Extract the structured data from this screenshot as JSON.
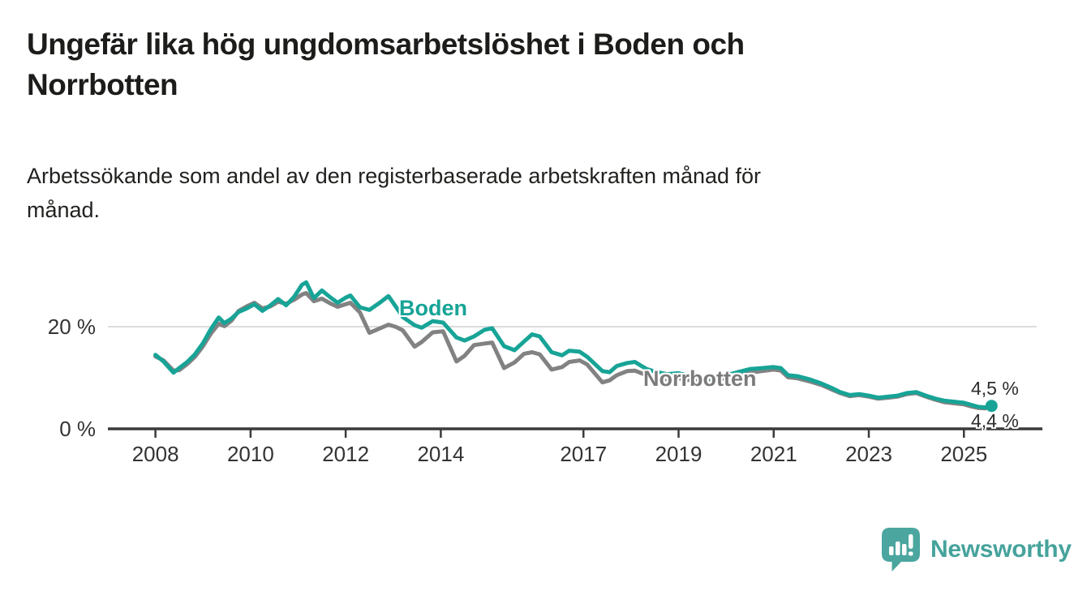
{
  "header": {
    "title_lines": [
      "Ungefär lika hög ungdomsarbetslöshet i Boden och",
      "Norrbotten"
    ],
    "subtitle_lines": [
      "Arbetssökande som andel av den registerbaserade arbetskraften månad för",
      "månad."
    ]
  },
  "chart_data": {
    "type": "line",
    "unit": "%",
    "grid": "horizontal-only",
    "legend_position": "inline-labels",
    "x": [
      2008.0,
      2008.17,
      2008.38,
      2008.5,
      2008.67,
      2008.83,
      2009.0,
      2009.17,
      2009.33,
      2009.45,
      2009.6,
      2009.75,
      2009.92,
      2010.08,
      2010.25,
      2010.42,
      2010.58,
      2010.75,
      2010.92,
      2011.08,
      2011.17,
      2011.33,
      2011.5,
      2011.67,
      2011.83,
      2012.0,
      2012.1,
      2012.3,
      2012.5,
      2012.7,
      2012.9,
      2013.05,
      2013.2,
      2013.45,
      2013.6,
      2013.83,
      2014.05,
      2014.33,
      2014.5,
      2014.7,
      2014.92,
      2015.08,
      2015.33,
      2015.55,
      2015.75,
      2015.92,
      2016.08,
      2016.33,
      2016.55,
      2016.7,
      2016.92,
      2017.08,
      2017.4,
      2017.55,
      2017.7,
      2017.92,
      2018.08,
      2018.33,
      2018.55,
      2018.75,
      2019.0,
      2019.25,
      2019.5,
      2019.75,
      2020.0,
      2020.25,
      2020.5,
      2020.75,
      2021.0,
      2021.15,
      2021.3,
      2021.5,
      2021.75,
      2022.0,
      2022.2,
      2022.4,
      2022.6,
      2022.8,
      2023.0,
      2023.2,
      2023.4,
      2023.6,
      2023.8,
      2024.0,
      2024.2,
      2024.4,
      2024.6,
      2024.8,
      2025.0,
      2025.15,
      2025.3,
      2025.45,
      2025.58
    ],
    "series": [
      {
        "name": "Boden",
        "color": "#17a497",
        "end_label": "4,5 %",
        "end_value": 4.5,
        "values": [
          14.5,
          13.2,
          11.0,
          11.9,
          13.1,
          14.6,
          16.8,
          19.6,
          21.8,
          20.7,
          21.6,
          22.9,
          23.6,
          24.4,
          23.1,
          24.2,
          25.4,
          24.2,
          25.9,
          28.2,
          28.7,
          25.6,
          27.1,
          25.8,
          24.7,
          25.7,
          26.1,
          23.8,
          23.3,
          24.6,
          26.0,
          24.0,
          21.9,
          20.3,
          19.8,
          21.1,
          20.8,
          17.9,
          17.3,
          18.1,
          19.4,
          19.7,
          16.2,
          15.4,
          17.1,
          18.5,
          18.1,
          15.0,
          14.4,
          15.3,
          15.1,
          14.1,
          11.3,
          11.1,
          12.3,
          12.9,
          13.1,
          11.7,
          11.1,
          10.7,
          10.9,
          10.3,
          9.9,
          10.1,
          10.5,
          11.1,
          11.7,
          11.9,
          12.1,
          11.9,
          10.5,
          10.3,
          9.7,
          8.9,
          8.1,
          7.2,
          6.6,
          6.8,
          6.5,
          6.1,
          6.3,
          6.5,
          7.0,
          7.2,
          6.5,
          5.9,
          5.5,
          5.3,
          5.1,
          4.7,
          4.3,
          4.2,
          4.5
        ]
      },
      {
        "name": "Norrbotten",
        "color": "#828282",
        "end_label": "4,4 %",
        "end_value": 4.4,
        "values": [
          14.2,
          13.4,
          11.4,
          11.5,
          12.7,
          14.1,
          16.2,
          18.7,
          20.6,
          20.1,
          21.2,
          23.1,
          24.0,
          24.7,
          23.6,
          24.0,
          24.9,
          24.5,
          25.3,
          26.3,
          26.6,
          25.0,
          25.5,
          24.6,
          23.9,
          24.4,
          24.7,
          22.8,
          18.8,
          19.6,
          20.4,
          20.0,
          19.3,
          16.1,
          17.0,
          18.9,
          19.1,
          13.2,
          14.3,
          16.4,
          16.7,
          16.9,
          11.9,
          13.0,
          14.7,
          15.0,
          14.6,
          11.6,
          12.1,
          13.1,
          13.4,
          12.6,
          9.1,
          9.5,
          10.5,
          11.3,
          11.4,
          10.5,
          10.0,
          9.7,
          9.9,
          9.5,
          9.2,
          9.5,
          9.9,
          10.4,
          11.0,
          11.3,
          11.6,
          11.4,
          10.1,
          9.9,
          9.3,
          8.6,
          7.8,
          7.0,
          6.4,
          6.6,
          6.3,
          5.9,
          6.1,
          6.3,
          6.8,
          7.0,
          6.3,
          5.7,
          5.2,
          5.0,
          4.8,
          4.4,
          4.1,
          4.0,
          4.4
        ]
      }
    ],
    "xticks": [
      2008,
      2010,
      2012,
      2014,
      2017,
      2019,
      2021,
      2023,
      2025
    ],
    "xtick_labels": [
      "2008",
      "2010",
      "2012",
      "2014",
      "2017",
      "2019",
      "2021",
      "2023",
      "2025"
    ],
    "yticks": [
      0,
      20
    ],
    "ytick_labels": [
      "0 %",
      "20 %"
    ],
    "grid_values": [
      20
    ],
    "xlim": [
      2007.0,
      2026.65
    ],
    "ylim": [
      0,
      31.6
    ],
    "axis_color": "#3b3b3b",
    "grid_color": "#dcdcdc",
    "tick_label_color": "#333333"
  },
  "branding": {
    "logo_text": "Newsworthy",
    "logo_color": "#46a39c"
  }
}
